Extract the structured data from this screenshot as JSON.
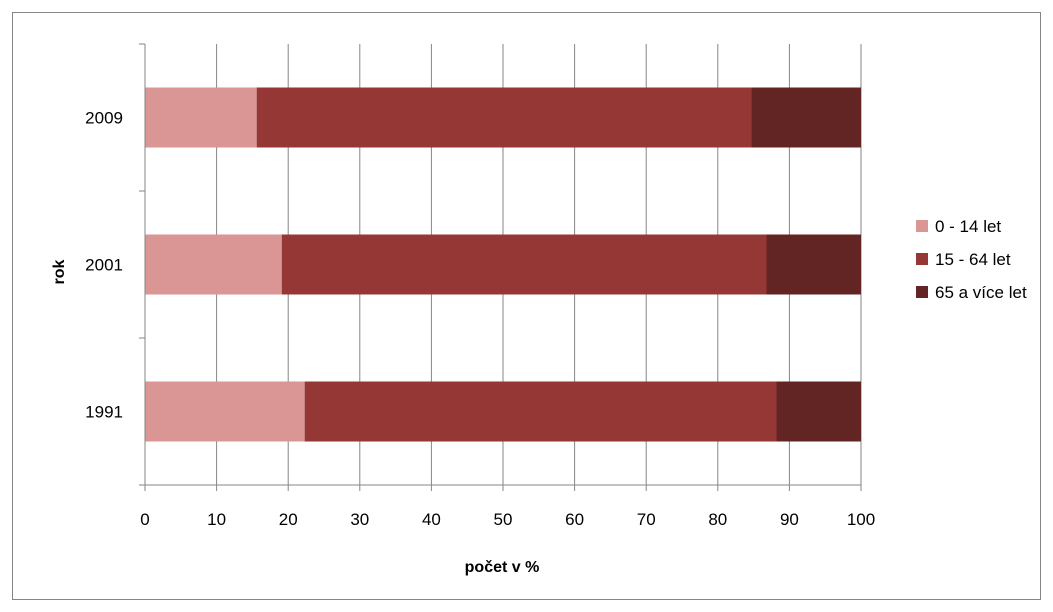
{
  "chart_data": {
    "type": "bar",
    "orientation": "horizontal",
    "stacked": true,
    "categories": [
      "1991",
      "2001",
      "2009"
    ],
    "series": [
      {
        "name": "0 - 14 let",
        "values": [
          22.3,
          19.1,
          15.6
        ],
        "color": "#d99694"
      },
      {
        "name": "15 - 64 let",
        "values": [
          65.9,
          67.7,
          69.1
        ],
        "color": "#953735"
      },
      {
        "name": "65 a více let",
        "values": [
          11.8,
          13.2,
          15.3
        ],
        "color": "#632523"
      }
    ],
    "xlabel": "počet v %",
    "ylabel": "rok",
    "xlim": [
      0,
      100
    ],
    "xticks": [
      "0",
      "10",
      "20",
      "30",
      "40",
      "50",
      "60",
      "70",
      "80",
      "90",
      "100"
    ],
    "grid": "vertical",
    "legend": "right"
  }
}
